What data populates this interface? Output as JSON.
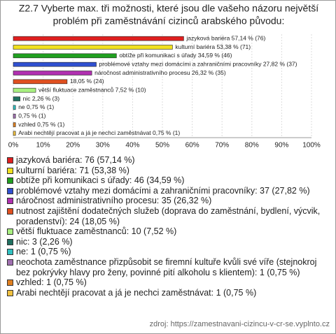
{
  "chart_data": {
    "type": "bar",
    "orientation": "horizontal",
    "title": [
      "Z2.7 Vyberte max. tři možnosti, které jsou dle vašeho názoru největší",
      "problém při zaměstnávání cizinců arabského původu:"
    ],
    "values": [
      57.14,
      53.38,
      34.59,
      27.82,
      26.32,
      18.05,
      7.52,
      2.26,
      0.75,
      0.75,
      0.75,
      0.75
    ],
    "value_labels": [
      "jazyková bariéra 57,14 % (76)",
      "kulturní bariéra 53,38 % (71)",
      "obtíže při komunikaci s úřady 34,59 % (46)",
      "problémové vztahy mezi domácími a zahraničními pracovníky 27,82 % (37)",
      "náročnost administrativního procesu 26,32 % (35)",
      "18,05 % (24)",
      "větší fluktuace zaměstnanců 7,52 % (10)",
      "nic 2,26 % (3)",
      "ne 0,75 % (1)",
      "0,75 % (1)",
      "vzhled 0,75 % (1)",
      "Arabi nechtějí pracovat a já je nechci zaměstnávat 0,75 % (1)"
    ],
    "legend_labels": [
      "jazyková bariéra: 76 (57,14 %)",
      "kulturní bariéra: 71 (53,38 %)",
      "obtíže při komunikaci s úřady: 46 (34,59 %)",
      "problémové vztahy mezi domácími a zahraničními pracovníky: 37 (27,82 %)",
      "náročnost administrativního procesu: 35 (26,32 %)",
      "nutnost zajištění dodatečných služeb (doprava do zaměstnání, bydlení, výcvik, poradenství): 24 (18,05 %)",
      "větší fluktuace zaměstnanců: 10 (7,52 %)",
      "nic: 3 (2,26 %)",
      "ne: 1 (0,75 %)",
      "neochota zaměstnance přizpůsobit se firemní kultuře kvůli své víře (stejnokroj bez pokrývky hlavy pro ženy, povinné pití alkoholu s klientem): 1 (0,75 %)",
      "vzhled: 1 (0,75 %)",
      "Arabi nechtějí pracovat a já je nechci zaměstnávat: 1 (0,75 %)"
    ],
    "colors": [
      "#e02020",
      "#f0e020",
      "#20a020",
      "#3050d0",
      "#b030b0",
      "#e05020",
      "#a8f080",
      "#207060",
      "#30c0c0",
      "#a070b0",
      "#e08020",
      "#f0c040"
    ],
    "xlim": [
      0,
      100
    ],
    "xticks": [
      {
        "value": 0,
        "label": "0%"
      },
      {
        "value": 10,
        "label": "10%"
      },
      {
        "value": 20,
        "label": "20%"
      },
      {
        "value": 30,
        "label": "30%"
      },
      {
        "value": 40,
        "label": "40%"
      },
      {
        "value": 50,
        "label": "50%"
      },
      {
        "value": 60,
        "label": "60%"
      },
      {
        "value": 70,
        "label": "70%"
      },
      {
        "value": 80,
        "label": "80%"
      },
      {
        "value": 90,
        "label": "90%"
      },
      {
        "value": 100,
        "label": "100%"
      }
    ],
    "grid": true,
    "source": "zdroj: https://zamestnavani-cizincu-v-cr-se.vyplnto.cz"
  }
}
